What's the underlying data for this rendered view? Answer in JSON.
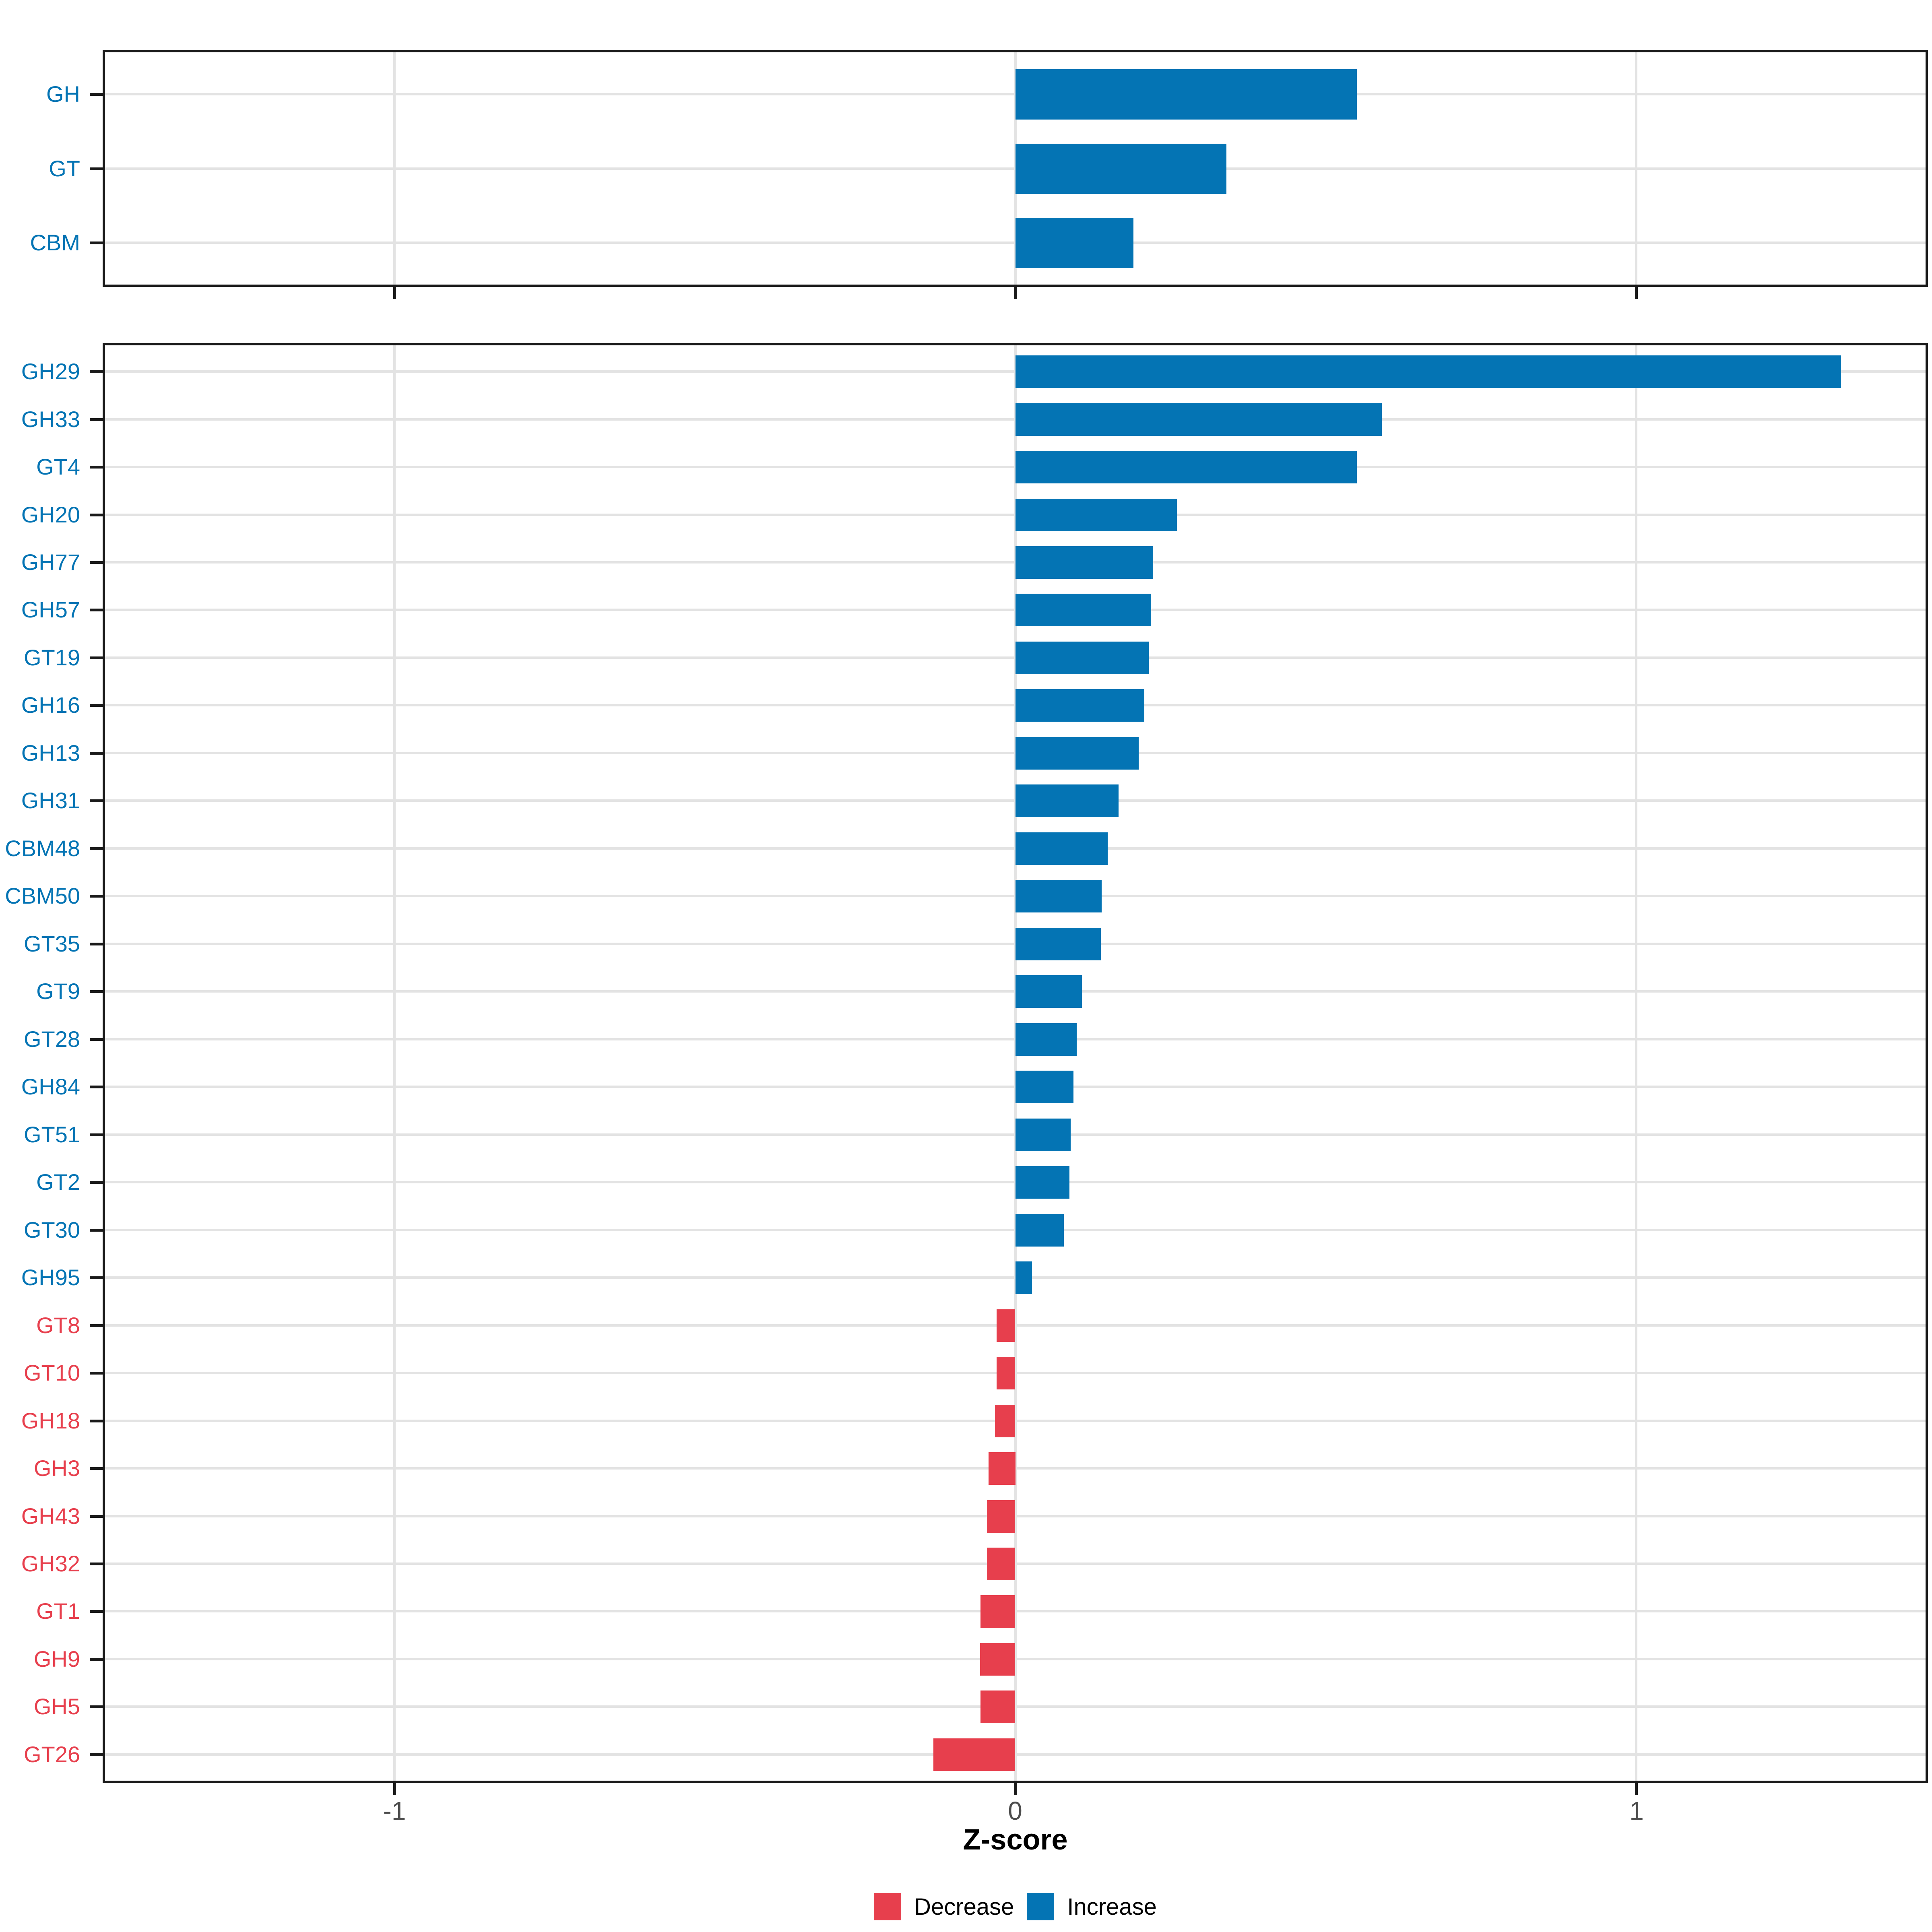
{
  "figure": {
    "xlabel": "Z-score",
    "x_tick_labels": [
      "-1",
      "0",
      "1"
    ],
    "legend": {
      "items": [
        {
          "label": "Decrease",
          "key": "decrease"
        },
        {
          "label": "Increase",
          "key": "increase"
        }
      ]
    }
  },
  "colors": {
    "increase": "#0474B4",
    "decrease": "#E73F4D",
    "grid": "#E3E3E3",
    "axis_text": "#4D4D4D",
    "border": "#1A1A1A"
  },
  "chart_data": [
    {
      "type": "bar",
      "orientation": "horizontal",
      "panel": "cazyme-class-summary",
      "categories": [
        "GH",
        "GT",
        "CBM"
      ],
      "values": [
        0.55,
        0.34,
        0.19
      ],
      "directions": [
        "Increase",
        "Increase",
        "Increase"
      ],
      "x_ticks": [
        -1,
        0,
        1
      ],
      "xlim": [
        -1.47,
        1.47
      ],
      "xlabel": "Z-score",
      "grid": "major-only",
      "show_x_tick_labels": false
    },
    {
      "type": "bar",
      "orientation": "horizontal",
      "panel": "cazyme-family-detail",
      "categories": [
        "GH29",
        "GH33",
        "GT4",
        "GH20",
        "GH77",
        "GH57",
        "GT19",
        "GH16",
        "GH13",
        "GH31",
        "CBM48",
        "CBM50",
        "GT35",
        "GT9",
        "GT28",
        "GH84",
        "GT51",
        "GT2",
        "GT30",
        "GH95",
        "GT8",
        "GT10",
        "GH18",
        "GH3",
        "GH43",
        "GH32",
        "GT1",
        "GH9",
        "GH5",
        "GT26"
      ],
      "values": [
        1.33,
        0.59,
        0.55,
        0.26,
        0.222,
        0.219,
        0.215,
        0.208,
        0.199,
        0.166,
        0.149,
        0.139,
        0.138,
        0.107,
        0.099,
        0.094,
        0.089,
        0.087,
        0.078,
        0.027,
        -0.03,
        -0.03,
        -0.033,
        -0.043,
        -0.046,
        -0.046,
        -0.056,
        -0.057,
        -0.056,
        -0.132
      ],
      "directions": [
        "Increase",
        "Increase",
        "Increase",
        "Increase",
        "Increase",
        "Increase",
        "Increase",
        "Increase",
        "Increase",
        "Increase",
        "Increase",
        "Increase",
        "Increase",
        "Increase",
        "Increase",
        "Increase",
        "Increase",
        "Increase",
        "Increase",
        "Increase",
        "Decrease",
        "Decrease",
        "Decrease",
        "Decrease",
        "Decrease",
        "Decrease",
        "Decrease",
        "Decrease",
        "Decrease",
        "Decrease"
      ],
      "x_ticks": [
        -1,
        0,
        1
      ],
      "xlim": [
        -1.47,
        1.47
      ],
      "xlabel": "Z-score",
      "grid": "major-only",
      "show_x_tick_labels": true,
      "legend_position": "bottom"
    }
  ]
}
